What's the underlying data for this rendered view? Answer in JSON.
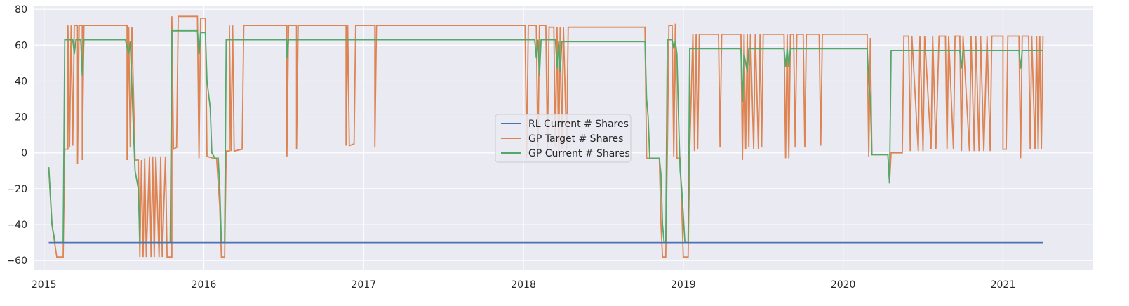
{
  "chart_data": {
    "type": "line",
    "title": "",
    "xlabel": "",
    "ylabel": "",
    "xlim": [
      2014.94,
      2021.56
    ],
    "ylim": [
      -65,
      82
    ],
    "grid": true,
    "legend_position": "center",
    "x_ticks": [
      2015,
      2016,
      2017,
      2018,
      2019,
      2020,
      2021
    ],
    "x_tick_labels": [
      "2015",
      "2016",
      "2017",
      "2018",
      "2019",
      "2020",
      "2021"
    ],
    "y_ticks": [
      -60,
      -40,
      -20,
      0,
      20,
      40,
      60,
      80
    ],
    "y_tick_labels": [
      "−60",
      "−40",
      "−20",
      "0",
      "20",
      "40",
      "60",
      "80"
    ],
    "colors": {
      "background": "#eaeaf2",
      "grid": "#ffffff"
    },
    "series": [
      {
        "name": "RL Current # Shares",
        "color": "#4c72b0",
        "points": [
          [
            2015.03,
            -50
          ],
          [
            2021.25,
            -50
          ]
        ]
      },
      {
        "name": "GP Target # Shares",
        "color": "#dd8452",
        "points": [
          [
            2015.03,
            -8
          ],
          [
            2015.05,
            -40
          ],
          [
            2015.08,
            -58
          ],
          [
            2015.12,
            -58
          ],
          [
            2015.13,
            2
          ],
          [
            2015.15,
            2
          ],
          [
            2015.15,
            71
          ],
          [
            2015.16,
            3
          ],
          [
            2015.17,
            71
          ],
          [
            2015.18,
            4
          ],
          [
            2015.19,
            71
          ],
          [
            2015.21,
            71
          ],
          [
            2015.21,
            -6
          ],
          [
            2015.22,
            71
          ],
          [
            2015.24,
            71
          ],
          [
            2015.24,
            -4
          ],
          [
            2015.25,
            71
          ],
          [
            2015.52,
            71
          ],
          [
            2015.52,
            -4
          ],
          [
            2015.53,
            70
          ],
          [
            2015.54,
            3
          ],
          [
            2015.55,
            70
          ],
          [
            2015.57,
            -4
          ],
          [
            2015.59,
            -4
          ],
          [
            2015.6,
            -58
          ],
          [
            2015.61,
            -4
          ],
          [
            2015.62,
            -58
          ],
          [
            2015.63,
            -3
          ],
          [
            2015.64,
            -58
          ],
          [
            2015.66,
            -2
          ],
          [
            2015.67,
            -58
          ],
          [
            2015.68,
            -2
          ],
          [
            2015.69,
            -58
          ],
          [
            2015.7,
            -2
          ],
          [
            2015.72,
            -58
          ],
          [
            2015.73,
            -2
          ],
          [
            2015.74,
            -58
          ],
          [
            2015.76,
            -2
          ],
          [
            2015.77,
            -58
          ],
          [
            2015.8,
            -58
          ],
          [
            2015.8,
            76
          ],
          [
            2015.81,
            2
          ],
          [
            2015.83,
            3
          ],
          [
            2015.84,
            76
          ],
          [
            2015.96,
            76
          ],
          [
            2015.97,
            -3
          ],
          [
            2015.98,
            75
          ],
          [
            2016.01,
            75
          ],
          [
            2016.02,
            -2
          ],
          [
            2016.06,
            -3
          ],
          [
            2016.08,
            -3
          ],
          [
            2016.1,
            -30
          ],
          [
            2016.11,
            -58
          ],
          [
            2016.13,
            -58
          ],
          [
            2016.14,
            1
          ],
          [
            2016.16,
            1
          ],
          [
            2016.16,
            71
          ],
          [
            2016.17,
            1
          ],
          [
            2016.18,
            71
          ],
          [
            2016.19,
            1
          ],
          [
            2016.24,
            2
          ],
          [
            2016.25,
            71
          ],
          [
            2016.52,
            71
          ],
          [
            2016.52,
            -2
          ],
          [
            2016.53,
            71
          ],
          [
            2016.58,
            71
          ],
          [
            2016.58,
            2
          ],
          [
            2016.59,
            71
          ],
          [
            2016.89,
            71
          ],
          [
            2016.89,
            4
          ],
          [
            2016.9,
            71
          ],
          [
            2016.91,
            4
          ],
          [
            2016.94,
            5
          ],
          [
            2016.95,
            71
          ],
          [
            2017.07,
            71
          ],
          [
            2017.07,
            3
          ],
          [
            2017.08,
            71
          ],
          [
            2018.01,
            71
          ],
          [
            2018.02,
            -3
          ],
          [
            2018.03,
            71
          ],
          [
            2018.08,
            71
          ],
          [
            2018.09,
            -2
          ],
          [
            2018.1,
            71
          ],
          [
            2018.14,
            71
          ],
          [
            2018.15,
            2
          ],
          [
            2018.16,
            70
          ],
          [
            2018.19,
            70
          ],
          [
            2018.2,
            3
          ],
          [
            2018.21,
            70
          ],
          [
            2018.22,
            -2
          ],
          [
            2018.23,
            70
          ],
          [
            2018.24,
            2
          ],
          [
            2018.25,
            70
          ],
          [
            2018.27,
            2
          ],
          [
            2018.28,
            70
          ],
          [
            2018.76,
            70
          ],
          [
            2018.77,
            -3
          ],
          [
            2018.85,
            -3
          ],
          [
            2018.86,
            -40
          ],
          [
            2018.87,
            -58
          ],
          [
            2018.89,
            -58
          ],
          [
            2018.9,
            2
          ],
          [
            2018.91,
            71
          ],
          [
            2018.93,
            71
          ],
          [
            2018.94,
            -2
          ],
          [
            2018.95,
            72
          ],
          [
            2018.96,
            -3
          ],
          [
            2018.98,
            -3
          ],
          [
            2018.99,
            -30
          ],
          [
            2019.0,
            -58
          ],
          [
            2019.03,
            -58
          ],
          [
            2019.04,
            2
          ],
          [
            2019.06,
            66
          ],
          [
            2019.07,
            1
          ],
          [
            2019.08,
            66
          ],
          [
            2019.09,
            2
          ],
          [
            2019.1,
            66
          ],
          [
            2019.22,
            66
          ],
          [
            2019.23,
            3
          ],
          [
            2019.24,
            66
          ],
          [
            2019.36,
            66
          ],
          [
            2019.37,
            -4
          ],
          [
            2019.38,
            66
          ],
          [
            2019.39,
            2
          ],
          [
            2019.4,
            66
          ],
          [
            2019.41,
            3
          ],
          [
            2019.42,
            66
          ],
          [
            2019.44,
            2
          ],
          [
            2019.45,
            66
          ],
          [
            2019.47,
            2
          ],
          [
            2019.48,
            66
          ],
          [
            2019.49,
            3
          ],
          [
            2019.5,
            66
          ],
          [
            2019.63,
            66
          ],
          [
            2019.64,
            -3
          ],
          [
            2019.65,
            66
          ],
          [
            2019.66,
            -3
          ],
          [
            2019.67,
            66
          ],
          [
            2019.69,
            66
          ],
          [
            2019.7,
            3
          ],
          [
            2019.71,
            66
          ],
          [
            2019.75,
            66
          ],
          [
            2019.76,
            3
          ],
          [
            2019.77,
            66
          ],
          [
            2019.85,
            66
          ],
          [
            2019.86,
            4
          ],
          [
            2019.87,
            66
          ],
          [
            2020.15,
            66
          ],
          [
            2020.16,
            -2
          ],
          [
            2020.17,
            64
          ],
          [
            2020.18,
            -1
          ],
          [
            2020.28,
            -1
          ],
          [
            2020.29,
            -17
          ],
          [
            2020.3,
            0
          ],
          [
            2020.37,
            0
          ],
          [
            2020.38,
            65
          ],
          [
            2020.41,
            65
          ],
          [
            2020.42,
            1
          ],
          [
            2020.43,
            65
          ],
          [
            2020.47,
            1
          ],
          [
            2020.48,
            65
          ],
          [
            2020.5,
            1
          ],
          [
            2020.51,
            65
          ],
          [
            2020.55,
            2
          ],
          [
            2020.56,
            65
          ],
          [
            2020.58,
            2
          ],
          [
            2020.6,
            65
          ],
          [
            2020.64,
            65
          ],
          [
            2020.65,
            2
          ],
          [
            2020.66,
            65
          ],
          [
            2020.69,
            2
          ],
          [
            2020.7,
            65
          ],
          [
            2020.73,
            65
          ],
          [
            2020.74,
            1
          ],
          [
            2020.75,
            65
          ],
          [
            2020.79,
            1
          ],
          [
            2020.8,
            65
          ],
          [
            2020.82,
            1
          ],
          [
            2020.83,
            65
          ],
          [
            2020.85,
            1
          ],
          [
            2020.86,
            65
          ],
          [
            2020.88,
            1
          ],
          [
            2020.9,
            65
          ],
          [
            2020.92,
            1
          ],
          [
            2020.93,
            65
          ],
          [
            2021.0,
            65
          ],
          [
            2021.0,
            2
          ],
          [
            2021.02,
            2
          ],
          [
            2021.03,
            65
          ],
          [
            2021.1,
            65
          ],
          [
            2021.11,
            -3
          ],
          [
            2021.12,
            65
          ],
          [
            2021.16,
            65
          ],
          [
            2021.17,
            2
          ],
          [
            2021.18,
            65
          ],
          [
            2021.2,
            2
          ],
          [
            2021.21,
            65
          ],
          [
            2021.22,
            2
          ],
          [
            2021.23,
            65
          ],
          [
            2021.24,
            2
          ],
          [
            2021.25,
            65
          ]
        ]
      },
      {
        "name": "GP Current # Shares",
        "color": "#55a868",
        "points": [
          [
            2015.03,
            -8
          ],
          [
            2015.05,
            -40
          ],
          [
            2015.07,
            -50
          ],
          [
            2015.12,
            -50
          ],
          [
            2015.13,
            63
          ],
          [
            2015.18,
            63
          ],
          [
            2015.19,
            55
          ],
          [
            2015.2,
            63
          ],
          [
            2015.23,
            63
          ],
          [
            2015.24,
            43
          ],
          [
            2015.25,
            63
          ],
          [
            2015.51,
            63
          ],
          [
            2015.53,
            55
          ],
          [
            2015.54,
            62
          ],
          [
            2015.56,
            13
          ],
          [
            2015.57,
            -10
          ],
          [
            2015.59,
            -20
          ],
          [
            2015.6,
            -50
          ],
          [
            2015.79,
            -50
          ],
          [
            2015.8,
            68
          ],
          [
            2015.96,
            68
          ],
          [
            2015.97,
            55
          ],
          [
            2015.98,
            67
          ],
          [
            2016.01,
            67
          ],
          [
            2016.02,
            40
          ],
          [
            2016.04,
            25
          ],
          [
            2016.05,
            0
          ],
          [
            2016.07,
            -3
          ],
          [
            2016.09,
            -3
          ],
          [
            2016.1,
            -20
          ],
          [
            2016.11,
            -50
          ],
          [
            2016.13,
            -50
          ],
          [
            2016.14,
            63
          ],
          [
            2016.52,
            63
          ],
          [
            2016.52,
            53
          ],
          [
            2016.53,
            63
          ],
          [
            2018.07,
            63
          ],
          [
            2018.08,
            53
          ],
          [
            2018.09,
            63
          ],
          [
            2018.1,
            43
          ],
          [
            2018.11,
            63
          ],
          [
            2018.2,
            63
          ],
          [
            2018.21,
            47
          ],
          [
            2018.22,
            62
          ],
          [
            2018.23,
            45
          ],
          [
            2018.24,
            62
          ],
          [
            2018.76,
            62
          ],
          [
            2018.77,
            30
          ],
          [
            2018.78,
            20
          ],
          [
            2018.79,
            -3
          ],
          [
            2018.85,
            -3
          ],
          [
            2018.86,
            -12
          ],
          [
            2018.87,
            -40
          ],
          [
            2018.88,
            -50
          ],
          [
            2018.89,
            -50
          ],
          [
            2018.9,
            63
          ],
          [
            2018.93,
            63
          ],
          [
            2018.94,
            58
          ],
          [
            2018.95,
            62
          ],
          [
            2018.96,
            55
          ],
          [
            2018.97,
            20
          ],
          [
            2018.98,
            -10
          ],
          [
            2018.99,
            -20
          ],
          [
            2019.01,
            -50
          ],
          [
            2019.03,
            -50
          ],
          [
            2019.04,
            58
          ],
          [
            2019.36,
            58
          ],
          [
            2019.37,
            28
          ],
          [
            2019.38,
            55
          ],
          [
            2019.4,
            45
          ],
          [
            2019.41,
            58
          ],
          [
            2019.63,
            58
          ],
          [
            2019.64,
            48
          ],
          [
            2019.65,
            58
          ],
          [
            2019.66,
            48
          ],
          [
            2019.67,
            58
          ],
          [
            2020.15,
            58
          ],
          [
            2020.16,
            40
          ],
          [
            2020.17,
            30
          ],
          [
            2020.18,
            -1
          ],
          [
            2020.28,
            -1
          ],
          [
            2020.29,
            -17
          ],
          [
            2020.3,
            57
          ],
          [
            2020.73,
            57
          ],
          [
            2020.74,
            47
          ],
          [
            2020.75,
            57
          ],
          [
            2021.1,
            57
          ],
          [
            2021.11,
            47
          ],
          [
            2021.12,
            57
          ],
          [
            2021.25,
            57
          ]
        ]
      }
    ]
  }
}
